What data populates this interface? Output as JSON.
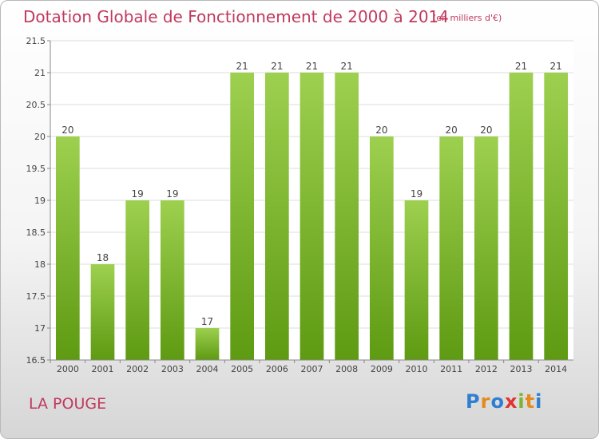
{
  "header": {
    "title": "Dotation Globale de Fonctionnement de 2000 à 2014",
    "unit": "(en milliers d'€)"
  },
  "footer": {
    "commune": "LA POUGE",
    "logo_letters": [
      "P",
      "r",
      "o",
      "x",
      "i",
      "t",
      "i"
    ]
  },
  "colors": {
    "title": "#c03a5c",
    "bar_top": "#9dd04f",
    "bar_bottom": "#5e9a12",
    "grid": "#dddddd"
  },
  "chart_data": {
    "type": "bar",
    "title": "Dotation Globale de Fonctionnement de 2000 à 2014",
    "subtitle": "(en milliers d'€)",
    "xlabel": "",
    "ylabel": "",
    "categories": [
      "2000",
      "2001",
      "2002",
      "2003",
      "2004",
      "2005",
      "2006",
      "2007",
      "2008",
      "2009",
      "2010",
      "2011",
      "2012",
      "2013",
      "2014"
    ],
    "values": [
      20,
      18,
      19,
      19,
      17,
      21,
      21,
      21,
      21,
      20,
      19,
      20,
      20,
      21,
      21
    ],
    "data_labels": [
      "20",
      "18",
      "19",
      "19",
      "17",
      "21",
      "21",
      "21",
      "21",
      "20",
      "19",
      "20",
      "20",
      "21",
      "21"
    ],
    "ylim": [
      16.5,
      21.5
    ],
    "yticks": [
      16.5,
      17,
      17.5,
      18,
      18.5,
      19,
      19.5,
      20,
      20.5,
      21,
      21.5
    ],
    "ytick_labels": [
      "16.5",
      "17",
      "17.5",
      "18",
      "18.5",
      "19",
      "19.5",
      "20",
      "20.5",
      "21",
      "21.5"
    ],
    "grid": true,
    "legend": "none"
  }
}
